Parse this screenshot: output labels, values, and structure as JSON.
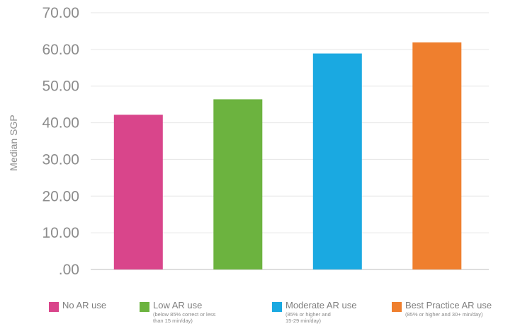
{
  "chart_data": {
    "type": "bar",
    "title": "",
    "xlabel": "",
    "ylabel": "Median SGP",
    "ylim": [
      0,
      70
    ],
    "y_ticks": [
      ".00",
      "10.00",
      "20.00",
      "30.00",
      "40.00",
      "50.00",
      "60.00",
      "70.00"
    ],
    "grid": "horizontal",
    "legend_position": "bottom",
    "categories": [
      "No AR use",
      "Low AR use",
      "Moderate AR use",
      "Best Practice AR use"
    ],
    "values": [
      42.2,
      46.4,
      58.9,
      61.9
    ],
    "colors": [
      "#d9458b",
      "#6cb33f",
      "#1aa9e1",
      "#ef7f2e"
    ],
    "legend": [
      {
        "label": "No AR use",
        "note": "",
        "color": "#d9458b"
      },
      {
        "label": "Low AR use",
        "note": "(below 85% correct or less\nthan 15 min/day)",
        "color": "#6cb33f"
      },
      {
        "label": "Moderate AR use",
        "note": "(85% or higher and\n15-29 min/day)",
        "color": "#1aa9e1"
      },
      {
        "label": "Best Practice AR use",
        "note": "(85% or higher and 30+ min/day)",
        "color": "#ef7f2e"
      }
    ]
  }
}
